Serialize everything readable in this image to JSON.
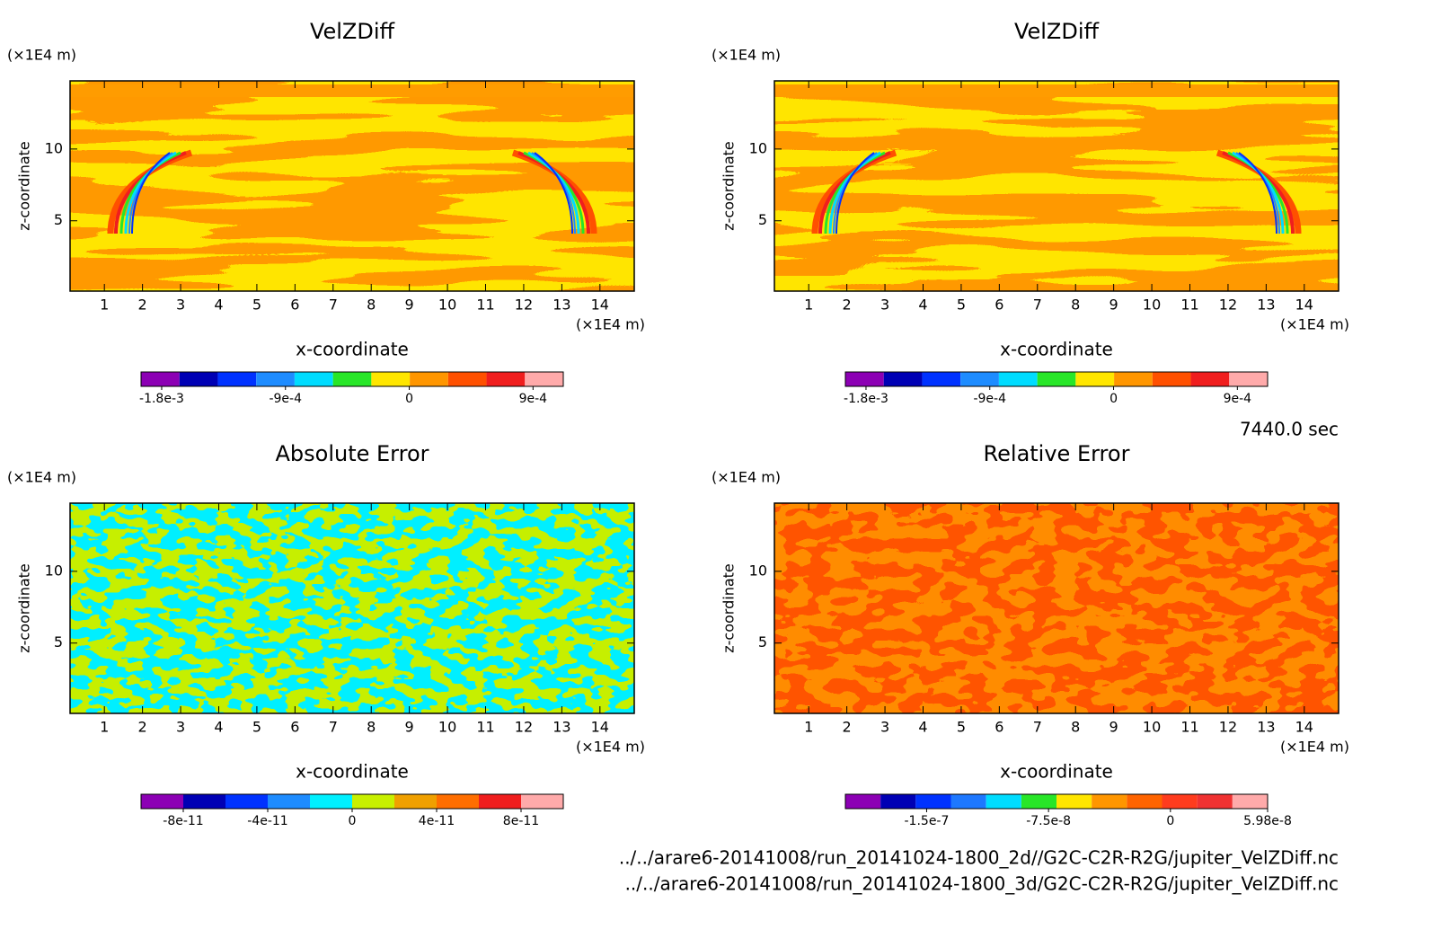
{
  "chart_data": [
    {
      "type": "contour",
      "title": "VelZDiff",
      "x_label": "x-coordinate",
      "y_label": "z-coordinate",
      "x_unit": "(×1E4 m)",
      "y_unit": "(×1E4 m)",
      "xlim": [
        0.1,
        14.9
      ],
      "xticks": [
        1,
        2,
        3,
        4,
        5,
        6,
        7,
        8,
        9,
        10,
        11,
        12,
        13,
        14
      ],
      "ylim": [
        0.1,
        14.75
      ],
      "yticks": [
        5,
        10
      ],
      "colorbar": {
        "lim": [
          -0.00195,
          0.00112
        ],
        "colors": [
          "#8c00b4",
          "#0000b4",
          "#0032ff",
          "#1e8cff",
          "#00dcff",
          "#28e628",
          "#ffe600",
          "#ff9600",
          "#ff5000",
          "#f01e1e",
          "#ffaaaa"
        ],
        "ticks": [
          {
            "value": -0.0018,
            "label": "-1.8e-3"
          },
          {
            "value": -0.0009,
            "label": "-9e-4"
          },
          0,
          {
            "value": 0.0009,
            "label": "9e-4"
          }
        ]
      }
    },
    {
      "type": "contour",
      "title": "VelZDiff",
      "x_label": "x-coordinate",
      "y_label": "z-coordinate",
      "x_unit": "(×1E4 m)",
      "y_unit": "(×1E4 m)",
      "xlim": [
        0.1,
        14.9
      ],
      "xticks": [
        1,
        2,
        3,
        4,
        5,
        6,
        7,
        8,
        9,
        10,
        11,
        12,
        13,
        14
      ],
      "ylim": [
        0.1,
        14.75
      ],
      "yticks": [
        5,
        10
      ],
      "colorbar": {
        "lim": [
          -0.00195,
          0.00112
        ],
        "colors": [
          "#8c00b4",
          "#0000b4",
          "#0032ff",
          "#1e8cff",
          "#00dcff",
          "#28e628",
          "#ffe600",
          "#ff9600",
          "#ff5000",
          "#f01e1e",
          "#ffaaaa"
        ],
        "ticks": [
          {
            "value": -0.0018,
            "label": "-1.8e-3"
          },
          {
            "value": -0.0009,
            "label": "-9e-4"
          },
          0,
          {
            "value": 0.0009,
            "label": "9e-4"
          }
        ]
      }
    },
    {
      "type": "contour",
      "title": "Absolute Error",
      "x_label": "x-coordinate",
      "y_label": "z-coordinate",
      "x_unit": "(×1E4 m)",
      "y_unit": "(×1E4 m)",
      "xlim": [
        0.1,
        14.9
      ],
      "xticks": [
        1,
        2,
        3,
        4,
        5,
        6,
        7,
        8,
        9,
        10,
        11,
        12,
        13,
        14
      ],
      "ylim": [
        0.1,
        14.75
      ],
      "yticks": [
        5,
        10
      ],
      "colorbar": {
        "lim": [
          -1e-10,
          1e-10
        ],
        "colors": [
          "#8c00b4",
          "#0000b4",
          "#0032ff",
          "#1e8cff",
          "#00f0ff",
          "#c8f000",
          "#f0a000",
          "#ff6e00",
          "#f01e1e",
          "#ffaaaa"
        ],
        "ticks": [
          {
            "value": -8e-11,
            "label": "-8e-11"
          },
          {
            "value": -4e-11,
            "label": "-4e-11"
          },
          0,
          {
            "value": 4e-11,
            "label": "4e-11"
          },
          {
            "value": 8e-11,
            "label": "8e-11"
          }
        ]
      }
    },
    {
      "type": "contour",
      "title": "Relative Error",
      "x_label": "x-coordinate",
      "y_label": "z-coordinate",
      "x_unit": "(×1E4 m)",
      "y_unit": "(×1E4 m)",
      "xlim": [
        0.1,
        14.9
      ],
      "xticks": [
        1,
        2,
        3,
        4,
        5,
        6,
        7,
        8,
        9,
        10,
        11,
        12,
        13,
        14
      ],
      "ylim": [
        0.1,
        14.75
      ],
      "yticks": [
        5,
        10
      ],
      "colorbar": {
        "lim": [
          -2e-07,
          5.98e-08
        ],
        "colors": [
          "#8c00b4",
          "#0000b4",
          "#0032ff",
          "#1e78ff",
          "#00dcff",
          "#28e628",
          "#ffe600",
          "#ff9600",
          "#ff6400",
          "#ff3c1e",
          "#f03232",
          "#ffaaaa"
        ],
        "ticks": [
          {
            "value": -1.5e-07,
            "label": "-1.5e-7"
          },
          {
            "value": -7.5e-08,
            "label": "-7.5e-8"
          },
          0,
          {
            "value": 5.98e-08,
            "label": "5.98e-8"
          }
        ]
      }
    }
  ],
  "time_label": "7440.0 sec",
  "files": [
    "../../arare6-20141008/run_20141024-1800_2d//G2C-C2R-R2G/jupiter_VelZDiff.nc",
    "../../arare6-20141008/run_20141024-1800_3d/G2C-C2R-R2G/jupiter_VelZDiff.nc"
  ]
}
